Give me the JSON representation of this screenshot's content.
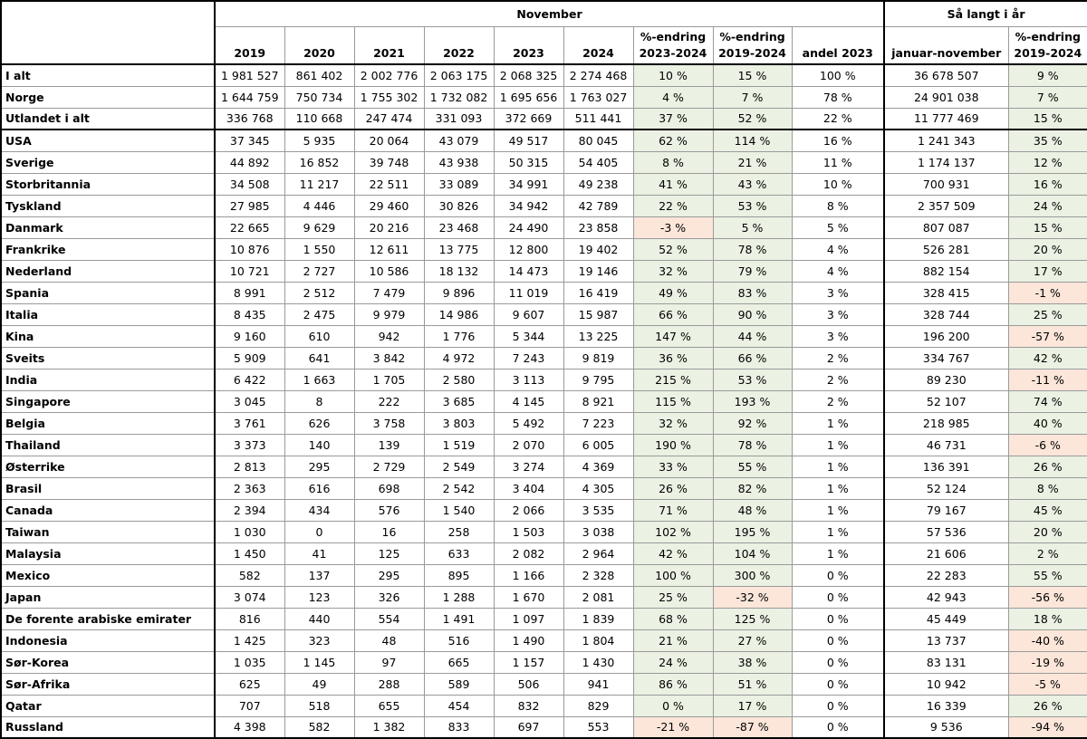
{
  "header": {
    "groups": [
      "November",
      "Så langt i år"
    ],
    "columns": [
      [
        "2019"
      ],
      [
        "2020"
      ],
      [
        "2021"
      ],
      [
        "2022"
      ],
      [
        "2023"
      ],
      [
        "2024"
      ],
      [
        "%-endring",
        "2023-2024"
      ],
      [
        "%-endring",
        "2019-2024"
      ],
      [
        "andel 2023"
      ],
      [
        "januar-november"
      ],
      [
        "%-endring",
        "2019-2024"
      ]
    ]
  },
  "table": {
    "rows": [
      [
        "I alt",
        "1 981 527",
        "861 402",
        "2 002 776",
        "2 063 175",
        "2 068 325",
        "2 274 468",
        "10 %",
        "15 %",
        "100 %",
        "36 678 507",
        "9 %"
      ],
      [
        "Norge",
        "1 644 759",
        "750 734",
        "1 755 302",
        "1 732 082",
        "1 695 656",
        "1 763 027",
        "4 %",
        "7 %",
        "78 %",
        "24 901 038",
        "7 %"
      ],
      [
        "Utlandet i alt",
        "336 768",
        "110 668",
        "247 474",
        "331 093",
        "372 669",
        "511 441",
        "37 %",
        "52 %",
        "22 %",
        "11 777 469",
        "15 %"
      ],
      [
        "USA",
        "37 345",
        "5 935",
        "20 064",
        "43 079",
        "49 517",
        "80 045",
        "62 %",
        "114 %",
        "16 %",
        "1 241 343",
        "35 %"
      ],
      [
        "Sverige",
        "44 892",
        "16 852",
        "39 748",
        "43 938",
        "50 315",
        "54 405",
        "8 %",
        "21 %",
        "11 %",
        "1 174 137",
        "12 %"
      ],
      [
        "Storbritannia",
        "34 508",
        "11 217",
        "22 511",
        "33 089",
        "34 991",
        "49 238",
        "41 %",
        "43 %",
        "10 %",
        "700 931",
        "16 %"
      ],
      [
        "Tyskland",
        "27 985",
        "4 446",
        "29 460",
        "30 826",
        "34 942",
        "42 789",
        "22 %",
        "53 %",
        "8 %",
        "2 357 509",
        "24 %"
      ],
      [
        "Danmark",
        "22 665",
        "9 629",
        "20 216",
        "23 468",
        "24 490",
        "23 858",
        "-3 %",
        "5 %",
        "5 %",
        "807 087",
        "15 %"
      ],
      [
        "Frankrike",
        "10 876",
        "1 550",
        "12 611",
        "13 775",
        "12 800",
        "19 402",
        "52 %",
        "78 %",
        "4 %",
        "526 281",
        "20 %"
      ],
      [
        "Nederland",
        "10 721",
        "2 727",
        "10 586",
        "18 132",
        "14 473",
        "19 146",
        "32 %",
        "79 %",
        "4 %",
        "882 154",
        "17 %"
      ],
      [
        "Spania",
        "8 991",
        "2 512",
        "7 479",
        "9 896",
        "11 019",
        "16 419",
        "49 %",
        "83 %",
        "3 %",
        "328 415",
        "-1 %"
      ],
      [
        "Italia",
        "8 435",
        "2 475",
        "9 979",
        "14 986",
        "9 607",
        "15 987",
        "66 %",
        "90 %",
        "3 %",
        "328 744",
        "25 %"
      ],
      [
        "Kina",
        "9 160",
        "610",
        "942",
        "1 776",
        "5 344",
        "13 225",
        "147 %",
        "44 %",
        "3 %",
        "196 200",
        "-57 %"
      ],
      [
        "Sveits",
        "5 909",
        "641",
        "3 842",
        "4 972",
        "7 243",
        "9 819",
        "36 %",
        "66 %",
        "2 %",
        "334 767",
        "42 %"
      ],
      [
        "India",
        "6 422",
        "1 663",
        "1 705",
        "2 580",
        "3 113",
        "9 795",
        "215 %",
        "53 %",
        "2 %",
        "89 230",
        "-11 %"
      ],
      [
        "Singapore",
        "3 045",
        "8",
        "222",
        "3 685",
        "4 145",
        "8 921",
        "115 %",
        "193 %",
        "2 %",
        "52 107",
        "74 %"
      ],
      [
        "Belgia",
        "3 761",
        "626",
        "3 758",
        "3 803",
        "5 492",
        "7 223",
        "32 %",
        "92 %",
        "1 %",
        "218 985",
        "40 %"
      ],
      [
        "Thailand",
        "3 373",
        "140",
        "139",
        "1 519",
        "2 070",
        "6 005",
        "190 %",
        "78 %",
        "1 %",
        "46 731",
        "-6 %"
      ],
      [
        "Østerrike",
        "2 813",
        "295",
        "2 729",
        "2 549",
        "3 274",
        "4 369",
        "33 %",
        "55 %",
        "1 %",
        "136 391",
        "26 %"
      ],
      [
        "Brasil",
        "2 363",
        "616",
        "698",
        "2 542",
        "3 404",
        "4 305",
        "26 %",
        "82 %",
        "1 %",
        "52 124",
        "8 %"
      ],
      [
        "Canada",
        "2 394",
        "434",
        "576",
        "1 540",
        "2 066",
        "3 535",
        "71 %",
        "48 %",
        "1 %",
        "79 167",
        "45 %"
      ],
      [
        "Taiwan",
        "1 030",
        "0",
        "16",
        "258",
        "1 503",
        "3 038",
        "102 %",
        "195 %",
        "1 %",
        "57 536",
        "20 %"
      ],
      [
        "Malaysia",
        "1 450",
        "41",
        "125",
        "633",
        "2 082",
        "2 964",
        "42 %",
        "104 %",
        "1 %",
        "21 606",
        "2 %"
      ],
      [
        "Mexico",
        "582",
        "137",
        "295",
        "895",
        "1 166",
        "2 328",
        "100 %",
        "300 %",
        "0 %",
        "22 283",
        "55 %"
      ],
      [
        "Japan",
        "3 074",
        "123",
        "326",
        "1 288",
        "1 670",
        "2 081",
        "25 %",
        "-32 %",
        "0 %",
        "42 943",
        "-56 %"
      ],
      [
        "De forente arabiske emirater",
        "816",
        "440",
        "554",
        "1 491",
        "1 097",
        "1 839",
        "68 %",
        "125 %",
        "0 %",
        "45 449",
        "18 %"
      ],
      [
        "Indonesia",
        "1 425",
        "323",
        "48",
        "516",
        "1 490",
        "1 804",
        "21 %",
        "27 %",
        "0 %",
        "13 737",
        "-40 %"
      ],
      [
        "Sør-Korea",
        "1 035",
        "1 145",
        "97",
        "665",
        "1 157",
        "1 430",
        "24 %",
        "38 %",
        "0 %",
        "83 131",
        "-19 %"
      ],
      [
        "Sør-Afrika",
        "625",
        "49",
        "288",
        "589",
        "506",
        "941",
        "86 %",
        "51 %",
        "0 %",
        "10 942",
        "-5 %"
      ],
      [
        "Qatar",
        "707",
        "518",
        "655",
        "454",
        "832",
        "829",
        "0 %",
        "17 %",
        "0 %",
        "16 339",
        "26 %"
      ],
      [
        "Russland",
        "4 398",
        "582",
        "1 382",
        "833",
        "697",
        "553",
        "-21 %",
        "-87 %",
        "0 %",
        "9 536",
        "-94 %"
      ]
    ]
  }
}
